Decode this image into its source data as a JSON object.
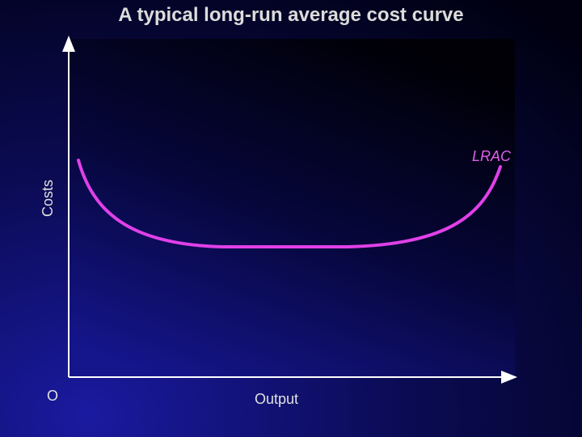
{
  "title": "A typical long-run average cost curve",
  "axes": {
    "y_label": "Costs",
    "x_label": "Output",
    "origin": "O"
  },
  "curve": {
    "label": "LRAC"
  }
}
